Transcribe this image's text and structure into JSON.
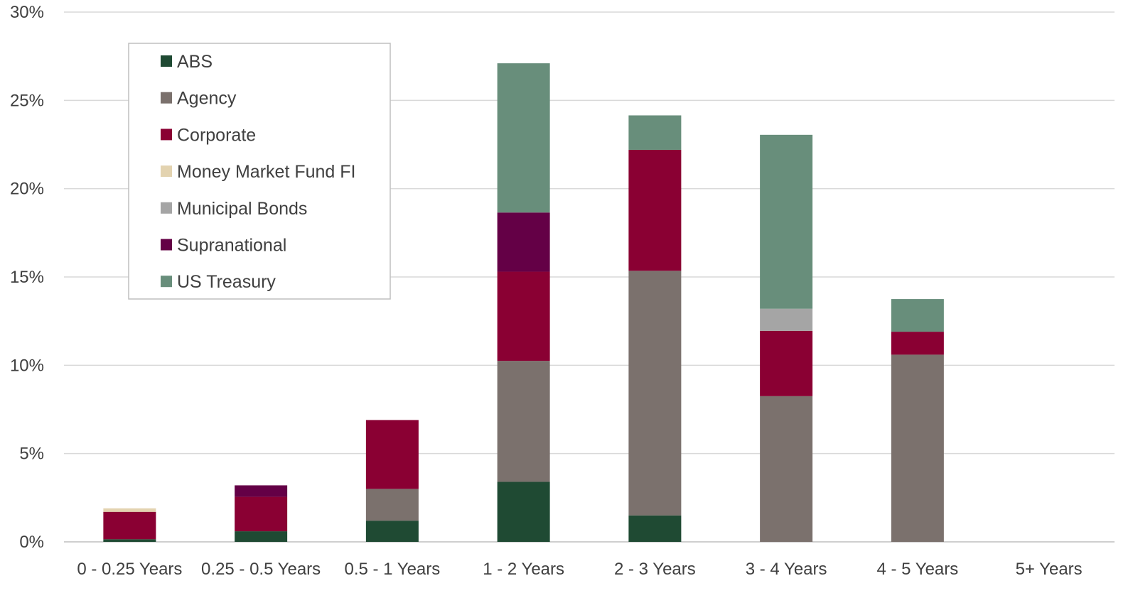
{
  "chart_data": {
    "type": "bar",
    "stacked": true,
    "title": "",
    "xlabel": "",
    "ylabel": "",
    "ylim": [
      0,
      30
    ],
    "y_ticks": [
      "0%",
      "5%",
      "10%",
      "15%",
      "20%",
      "25%",
      "30%"
    ],
    "y_tick_values": [
      0,
      5,
      10,
      15,
      20,
      25,
      30
    ],
    "grid": true,
    "legend_position": "top-left",
    "categories": [
      "0 - 0.25 Years",
      "0.25 - 0.5 Years",
      "0.5 - 1 Years",
      "1 - 2 Years",
      "2 - 3 Years",
      "3 - 4 Years",
      "4 - 5 Years",
      "5+ Years"
    ],
    "series": [
      {
        "name": "ABS",
        "color": "#1f4a33",
        "values": [
          0.15,
          0.6,
          1.2,
          3.4,
          1.5,
          0,
          0,
          0
        ]
      },
      {
        "name": "Agency",
        "color": "#7b716d",
        "values": [
          0,
          0,
          1.8,
          6.85,
          13.85,
          8.25,
          10.6,
          0
        ]
      },
      {
        "name": "Corporate",
        "color": "#8a0033",
        "values": [
          1.55,
          1.95,
          3.9,
          5.05,
          6.85,
          3.7,
          1.3,
          0
        ]
      },
      {
        "name": "Money Market Fund FI",
        "color": "#e3d3b0",
        "values": [
          0.2,
          0,
          0,
          0,
          0,
          0,
          0,
          0
        ]
      },
      {
        "name": "Municipal Bonds",
        "color": "#a5a5a5",
        "values": [
          0,
          0,
          0,
          0,
          0,
          1.25,
          0,
          0
        ]
      },
      {
        "name": "Supranational",
        "color": "#640046",
        "values": [
          0,
          0.65,
          0,
          3.35,
          0,
          0,
          0,
          0
        ]
      },
      {
        "name": "US Treasury",
        "color": "#688e7b",
        "values": [
          0,
          0,
          0,
          8.45,
          1.95,
          9.85,
          1.85,
          0
        ]
      }
    ]
  }
}
